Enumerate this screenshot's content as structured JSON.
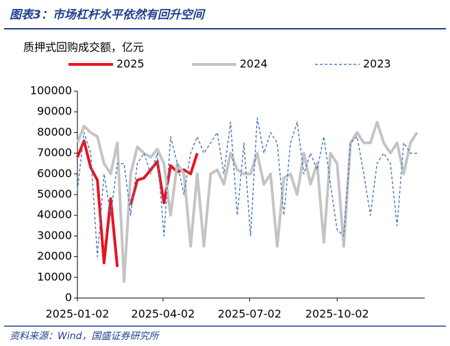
{
  "chart_data": {
    "type": "line",
    "title": "图表3：市场杠杆水平依然有回升空间",
    "y_label": "质押式回购成交额，亿元",
    "source": "资料来源：Wind，国盛证券研究所",
    "x": [
      "2025-01-02",
      "2025-01-09",
      "2025-01-16",
      "2025-01-23",
      "2025-01-30",
      "2025-02-06",
      "2025-02-13",
      "2025-02-20",
      "2025-02-27",
      "2025-03-06",
      "2025-03-13",
      "2025-03-20",
      "2025-03-27",
      "2025-04-03",
      "2025-04-10",
      "2025-04-17",
      "2025-04-24",
      "2025-05-01",
      "2025-05-08",
      "2025-05-15",
      "2025-05-22",
      "2025-05-29",
      "2025-06-05",
      "2025-06-12",
      "2025-06-19",
      "2025-06-26",
      "2025-07-03",
      "2025-07-10",
      "2025-07-17",
      "2025-07-24",
      "2025-07-31",
      "2025-08-07",
      "2025-08-14",
      "2025-08-21",
      "2025-08-28",
      "2025-09-04",
      "2025-09-11",
      "2025-09-18",
      "2025-09-25",
      "2025-10-02",
      "2025-10-09",
      "2025-10-16",
      "2025-10-23",
      "2025-10-30",
      "2025-11-06",
      "2025-11-13",
      "2025-11-20",
      "2025-11-27",
      "2025-12-04",
      "2025-12-11",
      "2025-12-18",
      "2025-12-25"
    ],
    "series": [
      {
        "name": "2025",
        "color": "#e8141c",
        "width": 4,
        "dashed": false,
        "values": [
          68000,
          76000,
          63000,
          57000,
          17000,
          48000,
          15000,
          null,
          45000,
          57000,
          58000,
          62000,
          66000,
          46000,
          64000,
          61000,
          62000,
          60000,
          70000,
          null,
          null,
          null,
          null,
          null,
          null,
          null,
          null,
          null,
          null,
          null,
          null,
          null,
          null,
          null,
          null,
          null,
          null,
          null,
          null,
          null,
          null,
          null,
          null,
          null,
          null,
          null,
          null,
          null,
          null,
          null,
          null,
          null
        ]
      },
      {
        "name": "2024",
        "color": "#c4c4c4",
        "width": 4,
        "dashed": false,
        "values": [
          75000,
          83000,
          80000,
          78000,
          65000,
          60000,
          75000,
          8000,
          60000,
          73000,
          70000,
          68000,
          72000,
          65000,
          40000,
          65000,
          60000,
          25000,
          60000,
          25000,
          60000,
          62000,
          55000,
          70000,
          62000,
          60000,
          60000,
          70000,
          55000,
          60000,
          25000,
          58000,
          60000,
          50000,
          70000,
          55000,
          65000,
          27000,
          70000,
          65000,
          25000,
          75000,
          80000,
          75000,
          75000,
          85000,
          75000,
          70000,
          75000,
          60000,
          75000,
          80000
        ]
      },
      {
        "name": "2023",
        "color": "#4a7dbf",
        "width": 1.5,
        "dashed": true,
        "values": [
          52000,
          80000,
          70000,
          20000,
          60000,
          40000,
          65000,
          65000,
          40000,
          65000,
          70000,
          60000,
          70000,
          30000,
          78000,
          65000,
          50000,
          70000,
          78000,
          70000,
          75000,
          80000,
          60000,
          85000,
          40000,
          75000,
          30000,
          87000,
          70000,
          80000,
          75000,
          40000,
          75000,
          85000,
          60000,
          70000,
          62000,
          78000,
          55000,
          33000,
          30000,
          75000,
          78000,
          60000,
          40000,
          65000,
          70000,
          65000,
          35000,
          75000,
          70000,
          70000
        ]
      }
    ],
    "xlim": [
      "2025-01-02",
      "2026-01-02"
    ],
    "xticks": [
      "2025-01-02",
      "2025-04-02",
      "2025-07-02",
      "2025-10-02"
    ],
    "ylim": [
      0,
      100000
    ],
    "yticks": [
      0,
      10000,
      20000,
      30000,
      40000,
      50000,
      60000,
      70000,
      80000,
      90000,
      100000
    ],
    "grid": false,
    "legend": "top"
  }
}
